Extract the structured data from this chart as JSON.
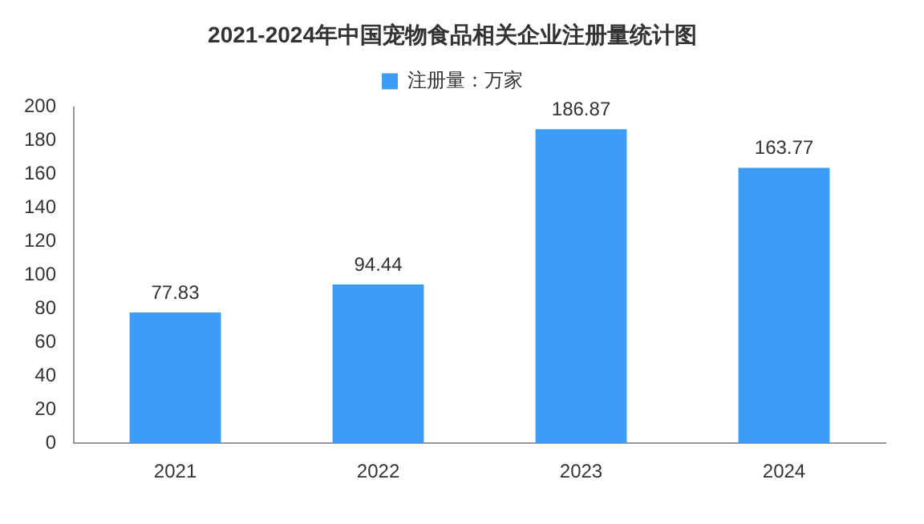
{
  "chart_data": {
    "type": "bar",
    "title": "2021-2024年中国宠物食品相关企业注册量统计图",
    "categories": [
      "2021",
      "2022",
      "2023",
      "2024"
    ],
    "series": [
      {
        "name": "注册量：万家",
        "color": "#3d9cf5",
        "values": [
          77.83,
          94.44,
          186.87,
          163.77
        ]
      }
    ],
    "ylim": [
      0,
      200
    ],
    "yticks": [
      0,
      20,
      40,
      60,
      80,
      100,
      120,
      140,
      160,
      180,
      200
    ],
    "grid": false,
    "legend": "top",
    "data_labels": true
  }
}
